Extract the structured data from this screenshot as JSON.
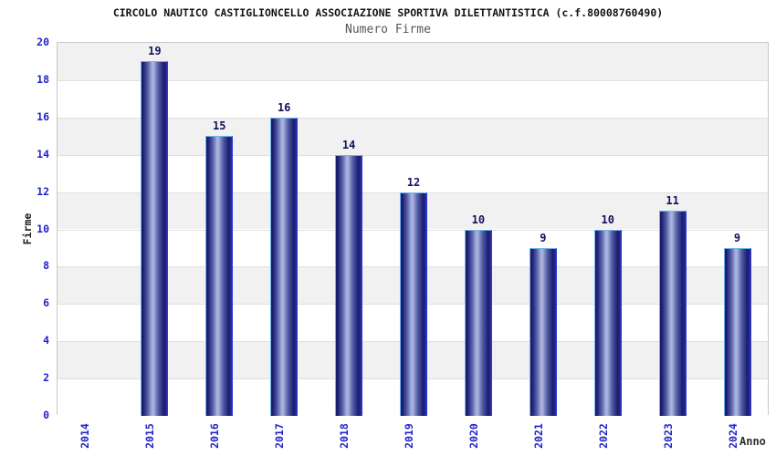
{
  "header": {
    "title": "CIRCOLO NAUTICO CASTIGLIONCELLO ASSOCIAZIONE SPORTIVA DILETTANTISTICA (c.f.80008760490)",
    "subtitle": "Numero Firme"
  },
  "chart_data": {
    "type": "bar",
    "title": "CIRCOLO NAUTICO CASTIGLIONCELLO ASSOCIAZIONE SPORTIVA DILETTANTISTICA (c.f.80008760490)",
    "subtitle": "Numero Firme",
    "categories": [
      "2014",
      "2015",
      "2016",
      "2017",
      "2018",
      "2019",
      "2020",
      "2021",
      "2022",
      "2023",
      "2024"
    ],
    "values": [
      null,
      19,
      15,
      16,
      14,
      12,
      10,
      9,
      10,
      11,
      9
    ],
    "value_labels": [
      "",
      "19",
      "15",
      "16",
      "14",
      "12",
      "10",
      "9",
      "10",
      "11",
      "9"
    ],
    "xlabel": "Anno",
    "ylabel": "Firme",
    "ylim": [
      0,
      20
    ],
    "ytick_step": 2,
    "ytick_labels": [
      "0",
      "2",
      "4",
      "6",
      "8",
      "10",
      "12",
      "14",
      "16",
      "18",
      "20"
    ],
    "legend": "none",
    "grid": "alternating horizontal bands every 2 units",
    "colors": {
      "title": "#141414",
      "subtitle": "#565656",
      "tick_label": "#2323cc",
      "axis_title": "#1c1c1c",
      "value_label": "#12125e",
      "band_gray": "#f1f1f1",
      "band_white": "#ffffff",
      "grid_line": "#e0e0e0",
      "plot_border": "#c8c8c8",
      "bar_dark": "#1b1b6f",
      "bar_mid": "#5560a8",
      "bar_light": "#aab3de",
      "bar_right_accent": "#2d2da5",
      "bar_border_light": "#6fb3ea",
      "bar_border_right": "#2b3fd6"
    }
  }
}
